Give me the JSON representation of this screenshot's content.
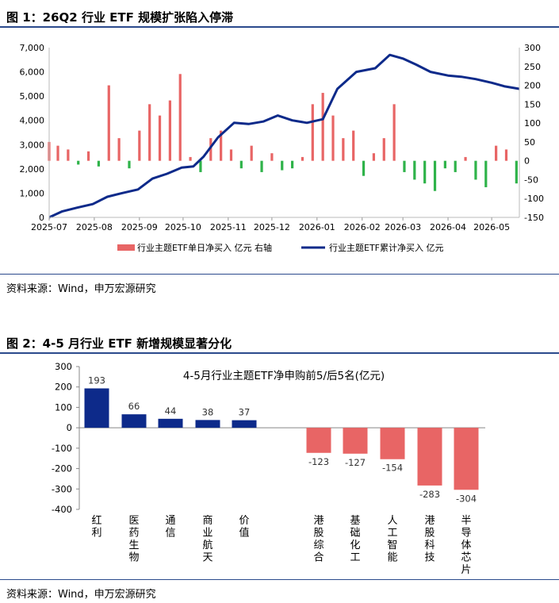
{
  "figure1": {
    "title": "图 1：26Q2 行业 ETF 规模扩张陷入停滞",
    "source": "资料来源：Wind，申万宏源研究",
    "left_ticks": [
      "0",
      "1,000",
      "2,000",
      "3,000",
      "4,000",
      "5,000",
      "6,000",
      "7,000"
    ],
    "right_ticks": [
      "-150",
      "-100",
      "-50",
      "0",
      "50",
      "100",
      "150",
      "200",
      "250",
      "300"
    ],
    "x_ticks": [
      "2025-07",
      "2025-08",
      "2025-09",
      "2025-10",
      "2025-11",
      "2025-12",
      "2026-01",
      "2026-02",
      "2026-03",
      "2026-04",
      "2026-05"
    ],
    "legend_bar": "行业主题ETF单日净买入 亿元 右轴",
    "legend_line": "行业主题ETF累计净买入 亿元"
  },
  "figure2": {
    "title": "图 2：4-5 月行业 ETF 新增规模显著分化",
    "source": "资料来源：Wind，申万宏源研究",
    "inner_title": "4-5月行业主题ETF净申购前5/后5名(亿元)",
    "y_ticks": [
      "300",
      "200",
      "100",
      "0",
      "-100",
      "-200",
      "-300",
      "-400"
    ]
  },
  "colors": {
    "navy": "#0d2a8a",
    "red": "#e86565",
    "green": "#2fb34a",
    "rule": "#2b4a8c"
  },
  "chart_data": [
    {
      "type": "bar+line",
      "title": "26Q2 行业 ETF 规模扩张陷入停滞",
      "ylim_left": [
        0,
        7000
      ],
      "ylim_right": [
        -150,
        300
      ],
      "x_range": [
        "2025-07-01",
        "2026-05-20"
      ],
      "series": [
        {
          "name": "行业主题ETF累计净买入 亿元",
          "type": "line",
          "axis": "left",
          "points": [
            [
              "2025-07-01",
              0
            ],
            [
              "2025-07-10",
              250
            ],
            [
              "2025-07-20",
              400
            ],
            [
              "2025-07-31",
              550
            ],
            [
              "2025-08-10",
              850
            ],
            [
              "2025-08-20",
              1000
            ],
            [
              "2025-08-31",
              1150
            ],
            [
              "2025-09-10",
              1600
            ],
            [
              "2025-09-20",
              1800
            ],
            [
              "2025-09-30",
              2050
            ],
            [
              "2025-10-08",
              2100
            ],
            [
              "2025-10-15",
              2500
            ],
            [
              "2025-10-25",
              3300
            ],
            [
              "2025-11-05",
              3900
            ],
            [
              "2025-11-15",
              3850
            ],
            [
              "2025-11-25",
              3950
            ],
            [
              "2025-12-05",
              4200
            ],
            [
              "2025-12-15",
              4000
            ],
            [
              "2025-12-25",
              3900
            ],
            [
              "2026-01-05",
              4050
            ],
            [
              "2026-01-15",
              5300
            ],
            [
              "2026-01-28",
              6000
            ],
            [
              "2026-02-10",
              6150
            ],
            [
              "2026-02-20",
              6700
            ],
            [
              "2026-03-01",
              6550
            ],
            [
              "2026-03-10",
              6300
            ],
            [
              "2026-03-20",
              6000
            ],
            [
              "2026-04-01",
              5850
            ],
            [
              "2026-04-10",
              5800
            ],
            [
              "2026-04-20",
              5700
            ],
            [
              "2026-05-01",
              5550
            ],
            [
              "2026-05-10",
              5400
            ],
            [
              "2026-05-20",
              5300
            ]
          ]
        },
        {
          "name": "行业主题ETF单日净买入 亿元 右轴",
          "type": "bar",
          "axis": "right",
          "dates": [
            "2025-07-01",
            "2025-07-07",
            "2025-07-14",
            "2025-07-21",
            "2025-07-28",
            "2025-08-04",
            "2025-08-11",
            "2025-08-18",
            "2025-08-25",
            "2025-09-01",
            "2025-09-08",
            "2025-09-15",
            "2025-09-22",
            "2025-09-29",
            "2025-10-06",
            "2025-10-13",
            "2025-10-20",
            "2025-10-27",
            "2025-11-03",
            "2025-11-10",
            "2025-11-17",
            "2025-11-24",
            "2025-12-01",
            "2025-12-08",
            "2025-12-15",
            "2025-12-22",
            "2025-12-29",
            "2026-01-05",
            "2026-01-12",
            "2026-01-19",
            "2026-01-26",
            "2026-02-02",
            "2026-02-09",
            "2026-02-16",
            "2026-02-23",
            "2026-03-02",
            "2026-03-09",
            "2026-03-16",
            "2026-03-23",
            "2026-03-30",
            "2026-04-06",
            "2026-04-13",
            "2026-04-20",
            "2026-04-27",
            "2026-05-04",
            "2026-05-11",
            "2026-05-18"
          ],
          "values": [
            50,
            40,
            30,
            -10,
            25,
            -15,
            200,
            60,
            -20,
            80,
            150,
            120,
            160,
            230,
            10,
            -30,
            60,
            80,
            30,
            -20,
            40,
            -30,
            20,
            -25,
            -20,
            10,
            150,
            180,
            120,
            60,
            80,
            -40,
            20,
            60,
            150,
            -30,
            -50,
            -60,
            -80,
            -20,
            -30,
            10,
            -50,
            -70,
            40,
            30,
            -60
          ]
        }
      ]
    },
    {
      "type": "bar",
      "title": "4-5月行业主题ETF净申购前5/后5名(亿元)",
      "categories": [
        "红利",
        "医药生物",
        "通信",
        "商业航天",
        "价值",
        "港股综合",
        "基础化工",
        "人工智能",
        "港股科技",
        "半导体芯片"
      ],
      "values": [
        193,
        66,
        44,
        38,
        37,
        -123,
        -127,
        -154,
        -283,
        -304
      ],
      "ylim": [
        -400,
        300
      ]
    }
  ]
}
